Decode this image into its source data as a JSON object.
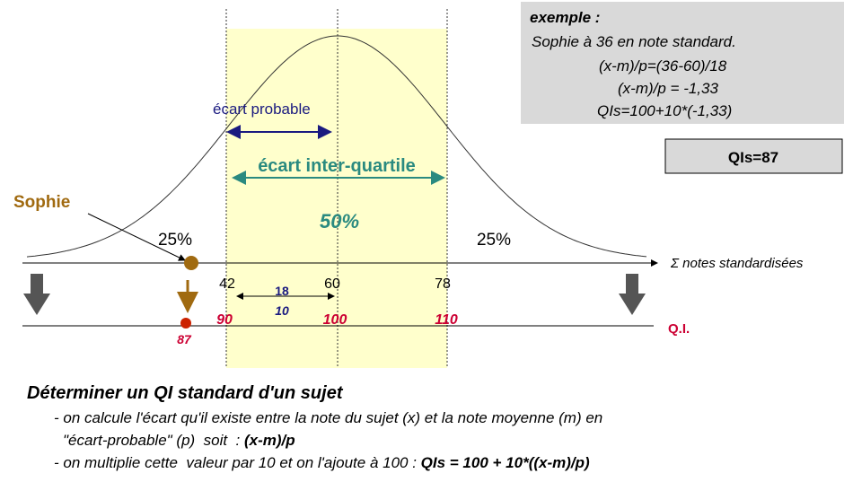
{
  "example": {
    "heading": "exemple :",
    "lines": [
      "Sophie à 36 en note standard.",
      "(x-m)/p=(36-60)/18",
      "(x-m)/p = -1,33",
      "QIs=100+10*(-1,33)"
    ]
  },
  "result": "QIs=87",
  "curve": {
    "ecart_probable": "écart probable",
    "ecart_inter_quartile": "écart inter-quartile",
    "center_percent": "50%",
    "left_percent": "25%",
    "right_percent": "25%"
  },
  "subject": "Sophie",
  "axis_standard": {
    "label": "Σ notes standardisées",
    "ticks": [
      "42",
      "60",
      "78"
    ],
    "diff_top": "18",
    "diff_bottom": "10"
  },
  "axis_qi": {
    "label": "Q.I.",
    "ticks": [
      "90",
      "100",
      "110"
    ],
    "subject_value": "87"
  },
  "explanation": {
    "title": "Déterminer un QI standard d'un sujet",
    "line1": "- on calcule l'écart qu'il existe entre la note du sujet (x) et la note moyenne (m) en",
    "line2": "\"écart-probable\" (p)  soit  : ",
    "line2_formula": "(x-m)/p",
    "line3": "- on multiplie cette  valeur par 10 et on l'ajoute à 100 : ",
    "line3_formula": "QIs = 100 + 10*((x-m)/p)"
  }
}
